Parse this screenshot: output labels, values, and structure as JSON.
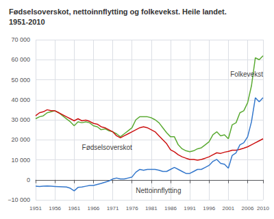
{
  "chart_data": {
    "type": "line",
    "title": "Fødselsoverskot, nettoinnflytting og folkevekst. Heile landet.",
    "subtitle": "1951-2010",
    "x": [
      1951,
      1952,
      1953,
      1954,
      1955,
      1956,
      1957,
      1958,
      1959,
      1960,
      1961,
      1962,
      1963,
      1964,
      1965,
      1966,
      1967,
      1968,
      1969,
      1970,
      1971,
      1972,
      1973,
      1974,
      1975,
      1976,
      1977,
      1978,
      1979,
      1980,
      1981,
      1982,
      1983,
      1984,
      1985,
      1986,
      1987,
      1988,
      1989,
      1990,
      1991,
      1992,
      1993,
      1994,
      1995,
      1996,
      1997,
      1998,
      1999,
      2000,
      2001,
      2002,
      2003,
      2004,
      2005,
      2006,
      2007,
      2008,
      2009,
      2010
    ],
    "series": [
      {
        "name": "Folkevekst",
        "color": "#5aaa32",
        "values": [
          30500,
          31500,
          32000,
          33500,
          34000,
          34500,
          33500,
          32000,
          30500,
          29000,
          27000,
          29000,
          28500,
          29000,
          28500,
          27000,
          26500,
          25000,
          25500,
          24500,
          24000,
          23000,
          21500,
          23000,
          24500,
          26000,
          30000,
          31500,
          31500,
          31500,
          31000,
          30000,
          28500,
          26000,
          23500,
          21500,
          21500,
          17500,
          15500,
          14500,
          14000,
          14500,
          15500,
          16000,
          17500,
          19000,
          22500,
          24000,
          22000,
          22500,
          20500,
          27500,
          28500,
          33500,
          34500,
          38500,
          47000,
          61000,
          60000,
          62000
        ]
      },
      {
        "name": "Fødselsoverskot",
        "color": "#cc1111",
        "values": [
          32000,
          33500,
          34000,
          35000,
          34500,
          34500,
          33500,
          32500,
          31500,
          30500,
          29500,
          30500,
          29500,
          29800,
          29200,
          28200,
          27800,
          26500,
          26000,
          25000,
          24000,
          22000,
          21000,
          22000,
          23000,
          24000,
          25000,
          26000,
          26500,
          26000,
          25000,
          24000,
          22000,
          20000,
          18000,
          15000,
          14000,
          12500,
          11500,
          10800,
          10200,
          10200,
          9800,
          10200,
          10800,
          11500,
          12500,
          13500,
          13200,
          13800,
          14200,
          14800,
          14800,
          15200,
          15800,
          16500,
          17500,
          18500,
          19500,
          20500
        ]
      },
      {
        "name": "Nettoinnflytting",
        "color": "#3377cc",
        "values": [
          -3200,
          -3300,
          -3200,
          -3100,
          -3200,
          -3300,
          -3400,
          -3500,
          -3600,
          -4200,
          -5500,
          -3800,
          -3600,
          -3200,
          -2800,
          -2800,
          -2300,
          -1800,
          -1200,
          -600,
          400,
          900,
          400,
          400,
          900,
          1400,
          3800,
          5200,
          4800,
          5200,
          5200,
          5200,
          4800,
          4200,
          4200,
          5200,
          6200,
          5200,
          4200,
          3200,
          3200,
          4200,
          5200,
          5200,
          6200,
          7200,
          9200,
          10200,
          8200,
          7800,
          5800,
          12200,
          13500,
          17500,
          18500,
          21500,
          29000,
          41000,
          39000,
          41000
        ]
      }
    ],
    "annotations": [
      {
        "x": 2001.5,
        "y": 51000,
        "text": "Folkevekst"
      },
      {
        "x": 1963,
        "y": 14500,
        "text": "Fødselsoverskot"
      },
      {
        "x": 1977,
        "y": -7000,
        "text": "Nettoinnflytting"
      }
    ],
    "xlim": [
      1951,
      2010
    ],
    "xticks": [
      1951,
      1956,
      1961,
      1966,
      1971,
      1976,
      1981,
      1986,
      1991,
      1996,
      2001,
      2006,
      2010
    ],
    "ylim": [
      -10000,
      70000
    ],
    "yticks": [
      {
        "value": -10000,
        "label": "−10 000"
      },
      0,
      {
        "value": 10000,
        "label": "10 000"
      },
      {
        "value": 20000,
        "label": "20 000"
      },
      {
        "value": 30000,
        "label": "30 000"
      },
      {
        "value": 40000,
        "label": "40 000"
      },
      {
        "value": 50000,
        "label": "50 000"
      },
      {
        "value": 60000,
        "label": "60 000"
      },
      {
        "value": 70000,
        "label": "70 000"
      }
    ],
    "grid": true
  }
}
